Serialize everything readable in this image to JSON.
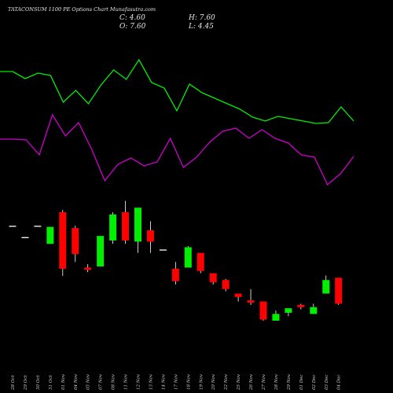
{
  "chart_data": {
    "type": "candlestick",
    "title": "TATACONSUM 1100  PE Options  Chart Munafasutra.com",
    "ohlc_readout": {
      "close": "C: 4.60",
      "high": "H: 7.60",
      "open": "O: 7.60",
      "low": "L: 4.45"
    },
    "categories": [
      "28 Oct",
      "29 Oct",
      "30 Oct",
      "31 Oct",
      "01 Nov",
      "04 Nov",
      "05 Nov",
      "07 Nov",
      "08 Nov",
      "11 Nov",
      "12 Nov",
      "13 Nov",
      "14 Nov",
      "17 Nov",
      "18 Nov",
      "19 Nov",
      "20 Nov",
      "22 Nov",
      "25 Nov",
      "26 Nov",
      "27 Nov",
      "28 Nov",
      "29 Nov",
      "01 Dec",
      "02 Dec",
      "03 Dec",
      "04 Dec"
    ],
    "candles": [
      {
        "o": 26.0,
        "h": 26.0,
        "l": 26.0,
        "c": 26.0,
        "dir": "flat"
      },
      {
        "o": 21.0,
        "h": 21.0,
        "l": 21.0,
        "c": 21.0,
        "dir": "flat"
      },
      {
        "o": 26.0,
        "h": 26.0,
        "l": 26.0,
        "c": 26.0,
        "dir": "flat"
      },
      {
        "o": 18.0,
        "h": 25.5,
        "l": 18.0,
        "c": 25.5,
        "dir": "up"
      },
      {
        "o": 32.0,
        "h": 33.0,
        "l": 3.8,
        "c": 7.0,
        "dir": "down"
      },
      {
        "o": 25.0,
        "h": 26.0,
        "l": 10.0,
        "c": 13.5,
        "dir": "down"
      },
      {
        "o": 7.5,
        "h": 9.0,
        "l": 5.5,
        "c": 6.5,
        "dir": "down"
      },
      {
        "o": 8.0,
        "h": 21.5,
        "l": 8.0,
        "c": 21.5,
        "dir": "up"
      },
      {
        "o": 19.5,
        "h": 32.0,
        "l": 18.0,
        "c": 31.0,
        "dir": "up"
      },
      {
        "o": 32.0,
        "h": 37.0,
        "l": 18.0,
        "c": 19.5,
        "dir": "down"
      },
      {
        "o": 19.0,
        "h": 34.0,
        "l": 14.0,
        "c": 34.0,
        "dir": "up"
      },
      {
        "o": 24.0,
        "h": 28.0,
        "l": 14.0,
        "c": 19.0,
        "dir": "down"
      },
      {
        "o": 15.5,
        "h": 15.5,
        "l": 15.5,
        "c": 15.5,
        "dir": "flat"
      },
      {
        "o": 7.0,
        "h": 10.0,
        "l": 0.0,
        "c": 1.5,
        "dir": "down"
      },
      {
        "o": 7.5,
        "h": 17.0,
        "l": 7.5,
        "c": 16.5,
        "dir": "up"
      },
      {
        "o": 14.0,
        "h": 14.0,
        "l": 5.0,
        "c": 6.0,
        "dir": "down"
      },
      {
        "o": 5.0,
        "h": 5.0,
        "l": 0.0,
        "c": 1.0,
        "dir": "down"
      },
      {
        "o": 2.0,
        "h": 2.5,
        "l": -3.0,
        "c": -2.0,
        "dir": "down"
      },
      {
        "o": -4.0,
        "h": -4.0,
        "l": -7.5,
        "c": -5.5,
        "dir": "down"
      },
      {
        "o": -7.0,
        "h": -2.0,
        "l": -9.0,
        "c": -8.0,
        "dir": "down"
      },
      {
        "o": -7.5,
        "h": -7.5,
        "l": -16.0,
        "c": -15.5,
        "dir": "down"
      },
      {
        "o": -16.0,
        "h": -11.5,
        "l": -16.0,
        "c": -13.0,
        "dir": "up"
      },
      {
        "o": -12.5,
        "h": -10.5,
        "l": -14.0,
        "c": -10.5,
        "dir": "up"
      },
      {
        "o": -9.0,
        "h": -8.5,
        "l": -11.0,
        "c": -10.0,
        "dir": "down"
      },
      {
        "o": -13.0,
        "h": -8.5,
        "l": -13.0,
        "c": -10.0,
        "dir": "up"
      },
      {
        "o": -4.0,
        "h": 4.0,
        "l": -4.0,
        "c": 2.0,
        "dir": "up"
      },
      {
        "o": 3.0,
        "h": 3.0,
        "l": -9.0,
        "c": -8.5,
        "dir": "down"
      }
    ],
    "overlay_series": [
      {
        "color": "#00ee00",
        "values": [
          91,
          91,
          100,
          93,
          96,
          130,
          115,
          132,
          108,
          89,
          101,
          76,
          105,
          112,
          141,
          107,
          118,
          125,
          132,
          139,
          149,
          154,
          148,
          151,
          154,
          157,
          156,
          136,
          154
        ]
      },
      {
        "color": "#cc00cc",
        "values": [
          177,
          177,
          178,
          197,
          146,
          173,
          156,
          190,
          230,
          209,
          201,
          211,
          206,
          176,
          213,
          200,
          181,
          167,
          163,
          176,
          165,
          176,
          182,
          197,
          200,
          235,
          221,
          199
        ]
      }
    ],
    "colors": {
      "up": "#00ee00",
      "down": "#ff0000",
      "flat": "#ffffff",
      "wick": "#ffffff",
      "background": "#000000"
    },
    "grid": false
  }
}
